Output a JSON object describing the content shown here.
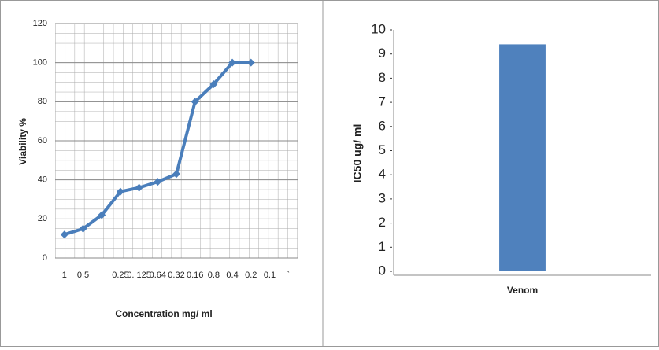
{
  "chart_data": [
    {
      "type": "line",
      "ylabel": "Viability %",
      "xlabel": "Concentration mg/ ml",
      "categories": [
        "1",
        "0.5",
        null,
        "0.25",
        "0. 125",
        "0.64",
        "0.32",
        "0.16",
        "0.8",
        "0.4",
        "0.2",
        "0.1",
        "`"
      ],
      "series": [
        {
          "name": "Viability",
          "color": "#4a7ebb",
          "values": [
            12,
            15,
            22,
            34,
            36,
            39,
            43,
            80,
            89,
            100,
            100,
            null,
            null
          ]
        }
      ],
      "ylim": [
        0,
        120
      ],
      "yticks": [
        0,
        20,
        40,
        60,
        80,
        100,
        120
      ],
      "grid": true
    },
    {
      "type": "bar",
      "ylabel": "IC50 ug/ ml",
      "categories": [
        "Venom"
      ],
      "values": [
        9.4
      ],
      "color": "#4f81bd",
      "ylim": [
        0,
        10
      ],
      "yticks": [
        0,
        1,
        2,
        3,
        4,
        5,
        6,
        7,
        8,
        9,
        10
      ],
      "grid": false
    }
  ]
}
